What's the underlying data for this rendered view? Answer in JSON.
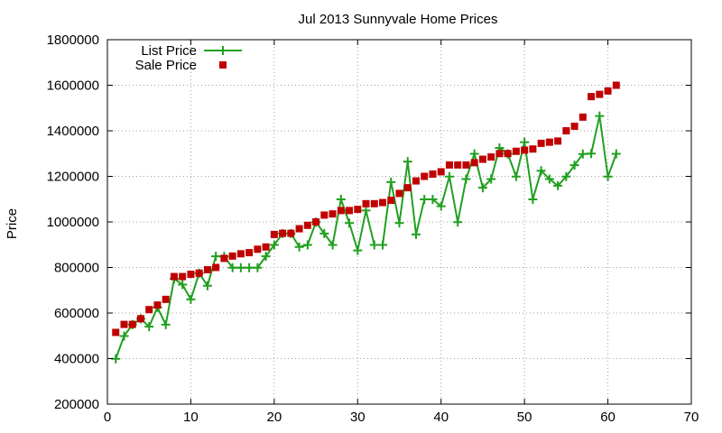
{
  "chart_data": {
    "type": "line",
    "title": "Jul 2013 Sunnyvale Home Prices",
    "xlabel": "",
    "ylabel": "Price",
    "xlim": [
      0,
      70
    ],
    "ylim": [
      200000,
      1800000
    ],
    "xticks": [
      0,
      10,
      20,
      30,
      40,
      50,
      60,
      70
    ],
    "yticks": [
      200000,
      400000,
      600000,
      800000,
      1000000,
      1200000,
      1400000,
      1600000,
      1800000
    ],
    "grid": true,
    "legend_position": "top-left",
    "series": [
      {
        "name": "List Price",
        "style": "linespoints",
        "color": "#20a020",
        "x": [
          1,
          2,
          3,
          4,
          5,
          6,
          7,
          8,
          9,
          10,
          11,
          12,
          13,
          14,
          15,
          16,
          17,
          18,
          19,
          20,
          21,
          22,
          23,
          24,
          25,
          26,
          27,
          28,
          29,
          30,
          31,
          32,
          33,
          34,
          35,
          36,
          37,
          38,
          39,
          40,
          41,
          42,
          43,
          44,
          45,
          46,
          47,
          48,
          49,
          50,
          51,
          52,
          53,
          54,
          55,
          56,
          57,
          58,
          59,
          60,
          61
        ],
        "values": [
          399000,
          499000,
          549000,
          575000,
          540000,
          625000,
          549000,
          750000,
          725000,
          660000,
          775000,
          720000,
          849000,
          849000,
          799000,
          799000,
          799000,
          799000,
          849000,
          899000,
          949000,
          949000,
          890000,
          899000,
          999000,
          949000,
          899000,
          1099000,
          995000,
          875000,
          1050000,
          899000,
          899000,
          1175000,
          995000,
          1265000,
          945000,
          1099000,
          1099000,
          1069000,
          1199000,
          999000,
          1188000,
          1299000,
          1150000,
          1188000,
          1325000,
          1299000,
          1199000,
          1350000,
          1099000,
          1225000,
          1188000,
          1159000,
          1199000,
          1249000,
          1298000,
          1300000,
          1465000,
          1199000,
          1299000
        ]
      },
      {
        "name": "Sale Price",
        "style": "points",
        "color": "#c00000",
        "x": [
          1,
          2,
          3,
          4,
          5,
          6,
          7,
          8,
          9,
          10,
          11,
          12,
          13,
          14,
          15,
          16,
          17,
          18,
          19,
          20,
          21,
          22,
          23,
          24,
          25,
          26,
          27,
          28,
          29,
          30,
          31,
          32,
          33,
          34,
          35,
          36,
          37,
          38,
          39,
          40,
          41,
          42,
          43,
          44,
          45,
          46,
          47,
          48,
          49,
          50,
          51,
          52,
          53,
          54,
          55,
          56,
          57,
          58,
          59,
          60,
          61
        ],
        "values": [
          515000,
          550000,
          550000,
          575000,
          615000,
          635000,
          660000,
          760000,
          760000,
          770000,
          775000,
          790000,
          800000,
          840000,
          850000,
          860000,
          865000,
          880000,
          890000,
          945000,
          950000,
          950000,
          970000,
          985000,
          1000000,
          1030000,
          1035000,
          1050000,
          1050000,
          1055000,
          1080000,
          1080000,
          1085000,
          1095000,
          1125000,
          1150000,
          1180000,
          1200000,
          1210000,
          1220000,
          1250000,
          1250000,
          1250000,
          1260000,
          1275000,
          1285000,
          1300000,
          1300000,
          1310000,
          1315000,
          1320000,
          1345000,
          1350000,
          1355000,
          1400000,
          1420000,
          1460000,
          1550000,
          1560000,
          1575000,
          1600000
        ]
      }
    ]
  }
}
